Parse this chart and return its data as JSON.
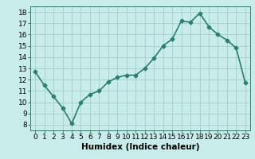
{
  "x": [
    0,
    1,
    2,
    3,
    4,
    5,
    6,
    7,
    8,
    9,
    10,
    11,
    12,
    13,
    14,
    15,
    16,
    17,
    18,
    19,
    20,
    21,
    22,
    23
  ],
  "y": [
    12.7,
    11.5,
    10.5,
    9.5,
    8.1,
    10.0,
    10.7,
    11.0,
    11.8,
    12.2,
    12.4,
    12.4,
    13.0,
    13.9,
    15.0,
    15.6,
    17.2,
    17.1,
    17.9,
    16.7,
    16.0,
    15.5,
    14.8,
    11.7
  ],
  "line_color": "#2e7d6e",
  "marker": "D",
  "marker_size": 2.5,
  "line_width": 1.2,
  "bg_color": "#c8ecea",
  "grid_color": "#a0d0ce",
  "xlabel": "Humidex (Indice chaleur)",
  "ylabel": "",
  "xlim": [
    -0.5,
    23.5
  ],
  "ylim": [
    7.5,
    18.5
  ],
  "yticks": [
    8,
    9,
    10,
    11,
    12,
    13,
    14,
    15,
    16,
    17,
    18
  ],
  "xticks": [
    0,
    1,
    2,
    3,
    4,
    5,
    6,
    7,
    8,
    9,
    10,
    11,
    12,
    13,
    14,
    15,
    16,
    17,
    18,
    19,
    20,
    21,
    22,
    23
  ],
  "axis_fontsize": 7.5,
  "tick_fontsize": 6.5
}
